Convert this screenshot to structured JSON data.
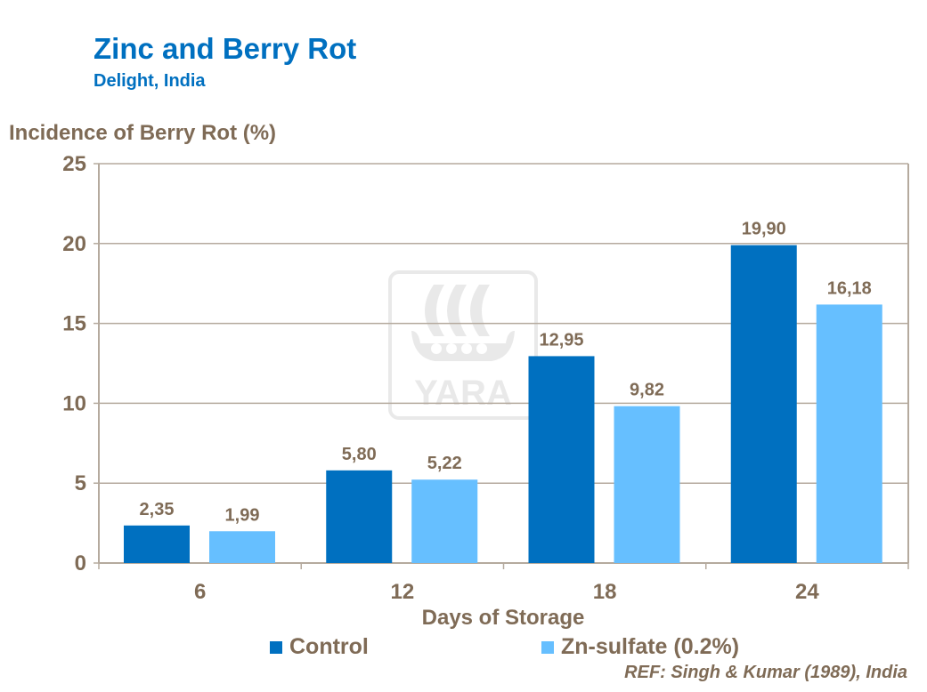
{
  "chart_data": {
    "type": "bar",
    "title": "Zinc and Berry Rot",
    "subtitle": "Delight, India",
    "ylabel": "Incidence of Berry Rot (%)",
    "xlabel": "Days of Storage",
    "categories": [
      "6",
      "12",
      "18",
      "24"
    ],
    "series": [
      {
        "name": "Control",
        "values": [
          2.35,
          5.8,
          12.95,
          19.9
        ],
        "labels": [
          "2,35",
          "5,80",
          "12,95",
          "19,90"
        ],
        "color": "#0070C0"
      },
      {
        "name": "Zn-sulfate (0.2%)",
        "values": [
          1.99,
          5.22,
          9.82,
          16.18
        ],
        "labels": [
          "1,99",
          "5,22",
          "9,82",
          "16,18"
        ],
        "color": "#66BFFF"
      }
    ],
    "ylim": [
      0,
      25
    ],
    "yticks": [
      "0",
      "5",
      "10",
      "15",
      "20",
      "25"
    ],
    "grid": true,
    "legend": "bottom",
    "reference": "REF: Singh & Kumar (1989), India",
    "watermark": "YARA"
  }
}
